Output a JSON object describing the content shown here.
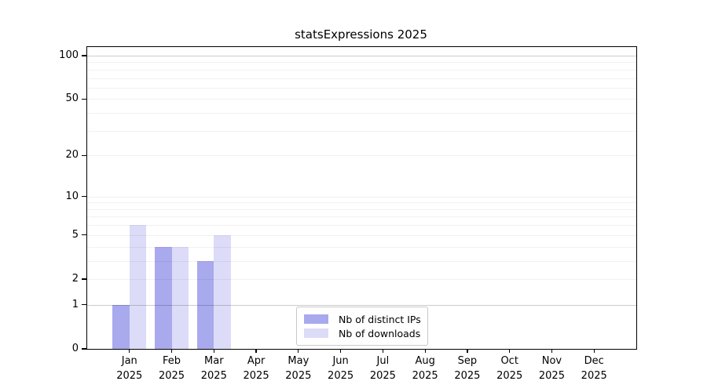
{
  "chart_data": {
    "type": "bar",
    "title": "statsExpressions 2025",
    "categories": [
      "Jan",
      "Feb",
      "Mar",
      "Apr",
      "May",
      "Jun",
      "Jul",
      "Aug",
      "Sep",
      "Oct",
      "Nov",
      "Dec"
    ],
    "x_sublabel": "2025",
    "series": [
      {
        "name": "Nb of distinct IPs",
        "color": "#a9a9ee",
        "values": [
          1,
          4,
          3,
          0,
          0,
          0,
          0,
          0,
          0,
          0,
          0,
          0
        ]
      },
      {
        "name": "Nb of downloads",
        "color": "#dcdcf8",
        "values": [
          6,
          4,
          5,
          0,
          0,
          0,
          0,
          0,
          0,
          0,
          0,
          0
        ]
      }
    ],
    "y_axis": {
      "scale": "log10(1+y)",
      "tick_labels": [
        0,
        1,
        2,
        5,
        10,
        20,
        50,
        100
      ],
      "minor_gridlines": [
        2,
        3,
        4,
        5,
        6,
        7,
        8,
        9,
        10,
        20,
        30,
        40,
        50,
        60,
        70,
        80,
        90
      ],
      "major_gridlines": [
        1,
        100
      ],
      "ylim": [
        0,
        115
      ]
    },
    "xlabel": "",
    "ylabel": "",
    "grid": "horizontal",
    "legend_position": "inside-bottom-center"
  },
  "legend": {
    "items": [
      {
        "label": "Nb of distinct IPs"
      },
      {
        "label": "Nb of downloads"
      }
    ]
  },
  "colors": {
    "bar_distinct_ips": "#a9a9ee",
    "bar_downloads": "#dcdcf8",
    "axis": "#000000",
    "grid_minor": "#f0f0f0",
    "grid_major": "#cccccc",
    "legend_border": "#c9c9c9",
    "background": "#ffffff"
  }
}
